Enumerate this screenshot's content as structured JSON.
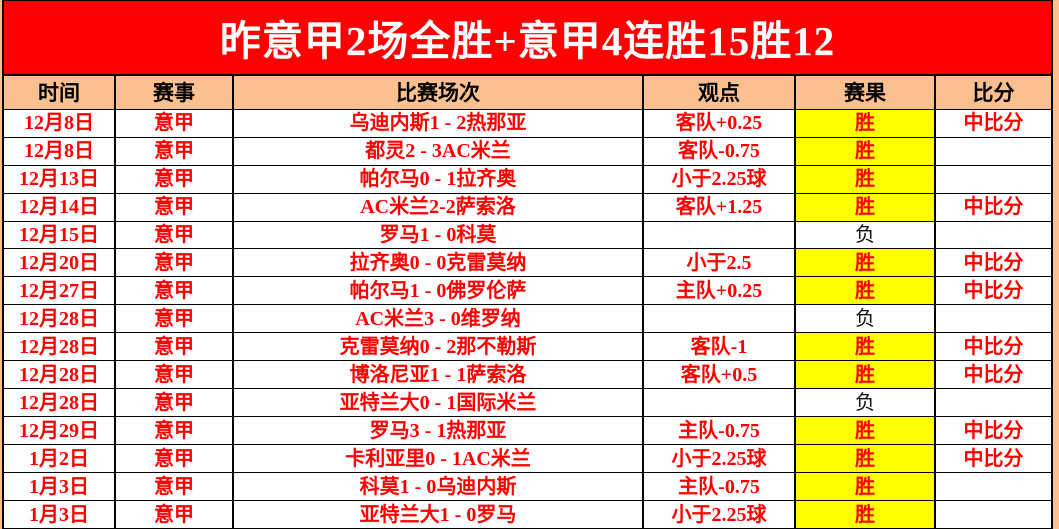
{
  "title": "昨意甲2场全胜+意甲4连胜15胜12",
  "table": {
    "headers": [
      "时间",
      "赛事",
      "比赛场次",
      "观点",
      "赛果",
      "比分"
    ],
    "result_win_label": "胜",
    "result_loss_label": "负",
    "rows": [
      {
        "date": "12月8日",
        "league": "意甲",
        "match": "乌迪内斯1 - 2热那亚",
        "view": "客队+0.25",
        "result": "胜",
        "score": "中比分"
      },
      {
        "date": "12月8日",
        "league": "意甲",
        "match": "都灵2 - 3AC米兰",
        "view": "客队-0.75",
        "result": "胜",
        "score": ""
      },
      {
        "date": "12月13日",
        "league": "意甲",
        "match": "帕尔马0 - 1拉齐奥",
        "view": "小于2.25球",
        "result": "胜",
        "score": ""
      },
      {
        "date": "12月14日",
        "league": "意甲",
        "match": "AC米兰2-2萨索洛",
        "view": "客队+1.25",
        "result": "胜",
        "score": "中比分"
      },
      {
        "date": "12月15日",
        "league": "意甲",
        "match": "罗马1 - 0科莫",
        "view": "",
        "result": "负",
        "score": ""
      },
      {
        "date": "12月20日",
        "league": "意甲",
        "match": "拉齐奥0 - 0克雷莫纳",
        "view": "小于2.5",
        "result": "胜",
        "score": "中比分"
      },
      {
        "date": "12月27日",
        "league": "意甲",
        "match": "帕尔马1 - 0佛罗伦萨",
        "view": "主队+0.25",
        "result": "胜",
        "score": "中比分"
      },
      {
        "date": "12月28日",
        "league": "意甲",
        "match": "AC米兰3 - 0维罗纳",
        "view": "",
        "result": "负",
        "score": ""
      },
      {
        "date": "12月28日",
        "league": "意甲",
        "match": "克雷莫纳0 - 2那不勒斯",
        "view": "客队-1",
        "result": "胜",
        "score": "中比分"
      },
      {
        "date": "12月28日",
        "league": "意甲",
        "match": "博洛尼亚1 - 1萨索洛",
        "view": "客队+0.5",
        "result": "胜",
        "score": "中比分"
      },
      {
        "date": "12月28日",
        "league": "意甲",
        "match": "亚特兰大0 - 1国际米兰",
        "view": "",
        "result": "负",
        "score": ""
      },
      {
        "date": "12月29日",
        "league": "意甲",
        "match": "罗马3 - 1热那亚",
        "view": "主队-0.75",
        "result": "胜",
        "score": "中比分"
      },
      {
        "date": "1月2日",
        "league": "意甲",
        "match": "卡利亚里0 - 1AC米兰",
        "view": "小于2.25球",
        "result": "胜",
        "score": "中比分"
      },
      {
        "date": "1月3日",
        "league": "意甲",
        "match": "科莫1 - 0乌迪内斯",
        "view": "主队-0.75",
        "result": "胜",
        "score": ""
      },
      {
        "date": "1月3日",
        "league": "意甲",
        "match": "亚特兰大1 - 0罗马",
        "view": "小于2.25球",
        "result": "胜",
        "score": ""
      }
    ]
  },
  "colors": {
    "banner_bg": "#FF0000",
    "banner_text": "#FFFFFF",
    "header_bg": "#FAC090",
    "page_bg": "#FAC090",
    "row_bg": "#FFFFFF",
    "text_red": "#FF0000",
    "win_bg": "#FFFF00",
    "loss_text": "#111111",
    "border": "#000000"
  }
}
